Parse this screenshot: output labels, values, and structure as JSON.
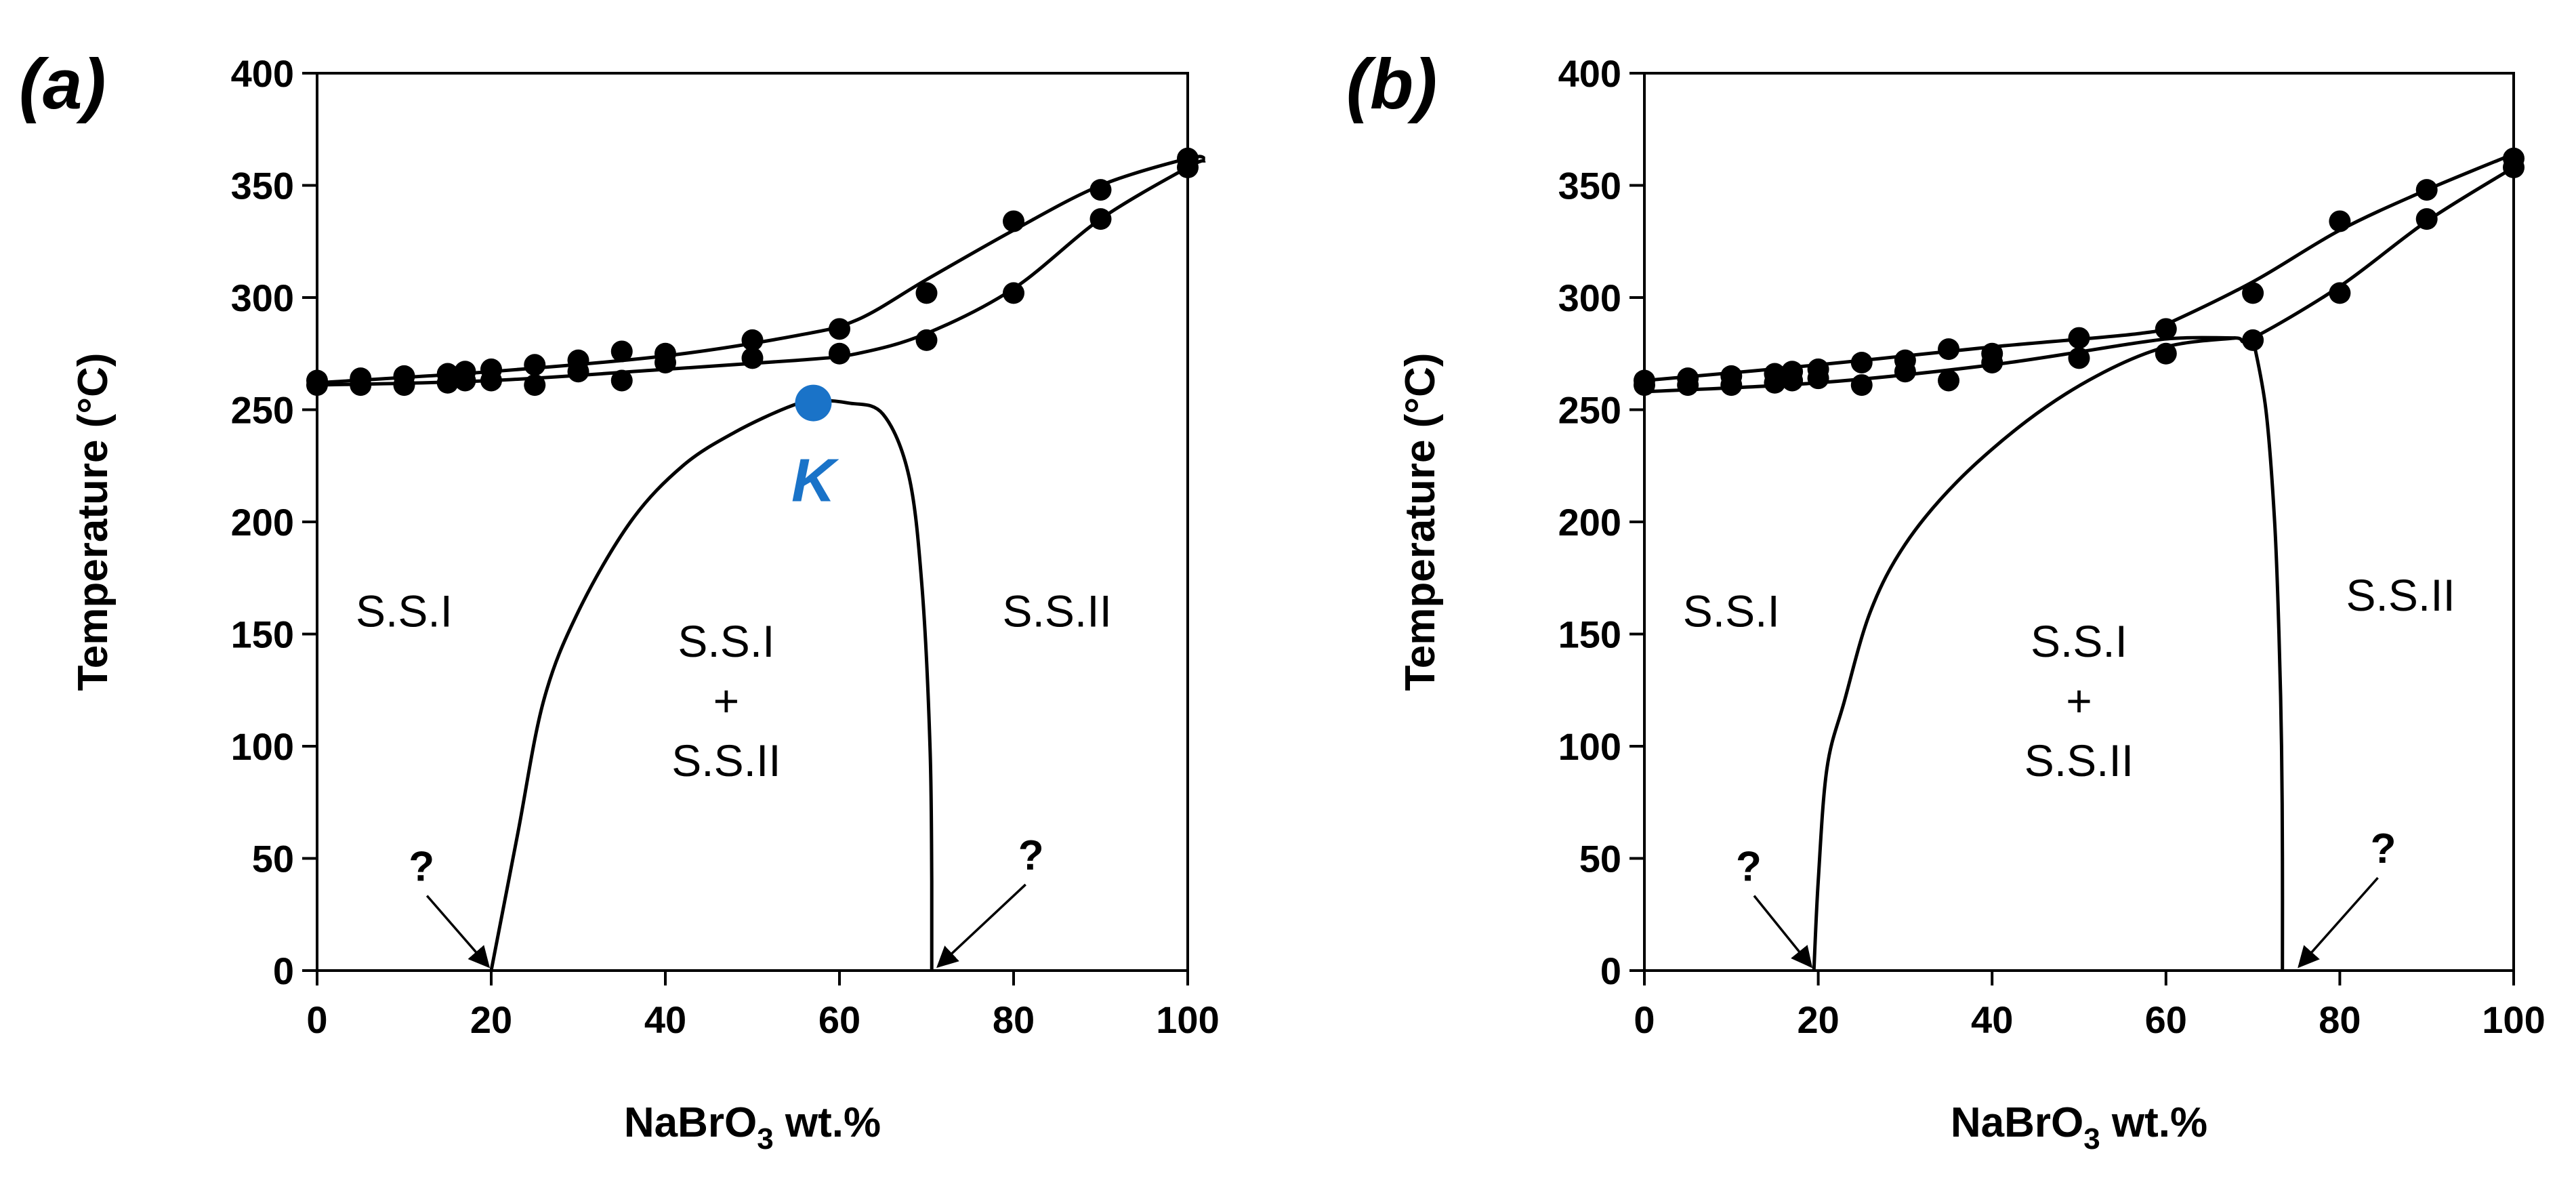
{
  "chart_data": [
    {
      "type": "scatter",
      "panel_label": "(a)",
      "xlabel": {
        "prefix": "NaBrO",
        "sub": "3",
        "suffix": " wt.%"
      },
      "ylabel": "Temperature (°C)",
      "xlim": [
        0,
        100
      ],
      "ylim": [
        0,
        400
      ],
      "xticks": [
        0,
        20,
        40,
        60,
        80,
        100
      ],
      "yticks": [
        0,
        50,
        100,
        150,
        200,
        250,
        300,
        350,
        400
      ],
      "grid": false,
      "series": [
        {
          "name": "upper transition points",
          "points": [
            [
              0,
              263
            ],
            [
              5,
              264
            ],
            [
              10,
              265
            ],
            [
              15,
              266
            ],
            [
              17,
              267
            ],
            [
              20,
              268
            ],
            [
              25,
              270
            ],
            [
              30,
              272
            ],
            [
              35,
              276
            ],
            [
              40,
              275
            ],
            [
              50,
              281
            ],
            [
              60,
              286
            ],
            [
              70,
              302
            ],
            [
              80,
              334
            ],
            [
              90,
              348
            ],
            [
              100,
              362
            ]
          ]
        },
        {
          "name": "lower transition points",
          "points": [
            [
              0,
              261
            ],
            [
              5,
              261
            ],
            [
              10,
              261
            ],
            [
              15,
              262
            ],
            [
              17,
              263
            ],
            [
              20,
              263
            ],
            [
              25,
              261
            ],
            [
              30,
              267
            ],
            [
              35,
              263
            ],
            [
              40,
              271
            ],
            [
              50,
              273
            ],
            [
              60,
              275
            ],
            [
              70,
              281
            ],
            [
              80,
              302
            ],
            [
              90,
              335
            ],
            [
              100,
              358
            ]
          ]
        }
      ],
      "curves": [
        {
          "name": "upper boundary",
          "points": [
            [
              0,
              262
            ],
            [
              20,
              267
            ],
            [
              40,
              274
            ],
            [
              55,
              283
            ],
            [
              62,
              290
            ],
            [
              70,
              308
            ],
            [
              80,
              330
            ],
            [
              90,
              350
            ],
            [
              100,
              362
            ],
            [
              102,
              362
            ]
          ]
        },
        {
          "name": "lower boundary",
          "points": [
            [
              0,
              261
            ],
            [
              20,
              263
            ],
            [
              40,
              268
            ],
            [
              55,
              272
            ],
            [
              62,
              275
            ],
            [
              70,
              284
            ],
            [
              80,
              304
            ],
            [
              90,
              335
            ],
            [
              100,
              358
            ],
            [
              102,
              361
            ]
          ]
        },
        {
          "name": "miscibility gap",
          "points": [
            [
              20,
              0
            ],
            [
              23,
              60
            ],
            [
              26,
              120
            ],
            [
              30,
              160
            ],
            [
              36,
              200
            ],
            [
              42,
              225
            ],
            [
              48,
              240
            ],
            [
              54,
              251
            ],
            [
              57,
              254
            ],
            [
              61,
              253
            ],
            [
              65,
              248
            ],
            [
              68,
              220
            ],
            [
              69.5,
              170
            ],
            [
              70.4,
              100
            ],
            [
              70.6,
              40
            ],
            [
              70.6,
              0
            ]
          ]
        }
      ],
      "highlight_point": {
        "label": "K",
        "x": 57,
        "y": 253,
        "color": "#1a73c8"
      },
      "regions": [
        {
          "lines": [
            "S.S.I"
          ],
          "x": 10,
          "y": 160
        },
        {
          "lines": [
            "S.S.I",
            "+",
            "S.S.II"
          ],
          "x": 47,
          "y": 120
        },
        {
          "lines": [
            "S.S.II"
          ],
          "x": 85,
          "y": 160
        }
      ],
      "annotations": [
        {
          "text": "?",
          "x": 12,
          "y": 40,
          "arrow_to": [
            20,
            0
          ]
        },
        {
          "text": "?",
          "x": 82,
          "y": 45,
          "arrow_to": [
            71,
            0
          ]
        }
      ]
    },
    {
      "type": "scatter",
      "panel_label": "(b)",
      "xlabel": {
        "prefix": "NaBrO",
        "sub": "3",
        "suffix": " wt.%"
      },
      "ylabel": "Temperature (°C)",
      "xlim": [
        0,
        100
      ],
      "ylim": [
        0,
        400
      ],
      "xticks": [
        0,
        20,
        40,
        60,
        80,
        100
      ],
      "yticks": [
        0,
        50,
        100,
        150,
        200,
        250,
        300,
        350,
        400
      ],
      "grid": false,
      "series": [
        {
          "name": "upper transition points",
          "points": [
            [
              0,
              263
            ],
            [
              5,
              264
            ],
            [
              10,
              265
            ],
            [
              15,
              266
            ],
            [
              17,
              267
            ],
            [
              20,
              268
            ],
            [
              25,
              271
            ],
            [
              30,
              272
            ],
            [
              35,
              277
            ],
            [
              40,
              275
            ],
            [
              50,
              282
            ],
            [
              60,
              286
            ],
            [
              70,
              302
            ],
            [
              80,
              334
            ],
            [
              90,
              348
            ],
            [
              100,
              362
            ]
          ]
        },
        {
          "name": "lower transition points",
          "points": [
            [
              0,
              261
            ],
            [
              5,
              261
            ],
            [
              10,
              261
            ],
            [
              15,
              262
            ],
            [
              17,
              263
            ],
            [
              20,
              264
            ],
            [
              25,
              261
            ],
            [
              30,
              267
            ],
            [
              35,
              263
            ],
            [
              40,
              271
            ],
            [
              50,
              273
            ],
            [
              60,
              275
            ],
            [
              70,
              281
            ],
            [
              80,
              302
            ],
            [
              90,
              335
            ],
            [
              100,
              358
            ]
          ]
        }
      ],
      "curves": [
        {
          "name": "upper boundary",
          "points": [
            [
              0,
              263
            ],
            [
              20,
              270
            ],
            [
              40,
              278
            ],
            [
              57,
              284
            ],
            [
              60,
              288
            ],
            [
              70,
              307
            ],
            [
              80,
              330
            ],
            [
              90,
              348
            ],
            [
              100,
              364
            ]
          ]
        },
        {
          "name": "lower boundary",
          "points": [
            [
              0,
              258
            ],
            [
              20,
              262
            ],
            [
              40,
              270
            ],
            [
              57,
              280
            ],
            [
              62,
              282
            ],
            [
              68,
              282
            ],
            [
              70,
              282
            ],
            [
              80,
              305
            ],
            [
              90,
              334
            ],
            [
              100,
              358
            ]
          ]
        },
        {
          "name": "left solvus",
          "points": [
            [
              19.5,
              0
            ],
            [
              20,
              40
            ],
            [
              21,
              90
            ],
            [
              23,
              120
            ],
            [
              26,
              160
            ],
            [
              30,
              190
            ],
            [
              36,
              218
            ],
            [
              44,
              245
            ],
            [
              52,
              265
            ],
            [
              60,
              278
            ],
            [
              68,
              282
            ]
          ]
        },
        {
          "name": "right solvus",
          "points": [
            [
              70,
              282
            ],
            [
              71.5,
              250
            ],
            [
              72.5,
              200
            ],
            [
              73,
              150
            ],
            [
              73.3,
              100
            ],
            [
              73.4,
              50
            ],
            [
              73.4,
              0
            ]
          ]
        }
      ],
      "regions": [
        {
          "lines": [
            "S.S.I"
          ],
          "x": 10,
          "y": 160
        },
        {
          "lines": [
            "S.S.I",
            "+",
            "S.S.II"
          ],
          "x": 50,
          "y": 120
        },
        {
          "lines": [
            "S.S.II"
          ],
          "x": 87,
          "y": 167
        }
      ],
      "annotations": [
        {
          "text": "?",
          "x": 12,
          "y": 40,
          "arrow_to": [
            19.5,
            0
          ]
        },
        {
          "text": "?",
          "x": 85,
          "y": 48,
          "arrow_to": [
            75,
            0
          ]
        }
      ]
    }
  ]
}
